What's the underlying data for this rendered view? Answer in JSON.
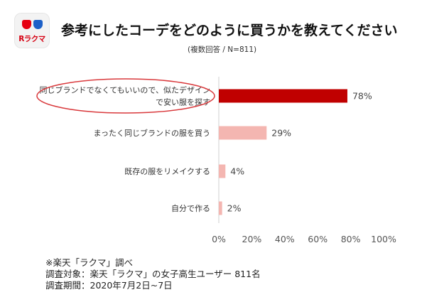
{
  "header": {
    "logo_text": "Rラクマ",
    "title": "参考にしたコーデをどのように買うかを教えてください",
    "subtitle": "(複数回答 / N=811)"
  },
  "colors": {
    "highlight": "#c00000",
    "bar": "#f4b6b1",
    "ellipse": "#d9393c",
    "brand_red": "#e60012",
    "brand_blue": "#1d60c8"
  },
  "chart_data": {
    "type": "bar",
    "orientation": "horizontal",
    "categories": [
      "同じブランドでなくてもいいので、似たデザインで安い服を探す",
      "まったく同じブランドの服を買う",
      "既存の服をリメイクする",
      "自分で作る"
    ],
    "category_lines": [
      [
        "同じブランドでなくてもいいので、似たデザイン",
        "で安い服を探す"
      ],
      [
        "まったく同じブランドの服を買う"
      ],
      [
        "既存の服をリメイクする"
      ],
      [
        "自分で作る"
      ]
    ],
    "values": [
      78,
      29,
      4,
      2
    ],
    "data_labels": [
      "78%",
      "29%",
      "4%",
      "2%"
    ],
    "xlim": [
      0,
      100
    ],
    "xticks": [
      "0%",
      "20%",
      "40%",
      "60%",
      "80%",
      "100%"
    ],
    "grid": false,
    "highlighted_category": 0
  },
  "notes": {
    "source": "※楽天「ラクマ」調べ",
    "target": "調査対象：楽天「ラクマ」の女子高生ユーザー 811名",
    "period": "調査期間：2020年7月2日~7日"
  }
}
